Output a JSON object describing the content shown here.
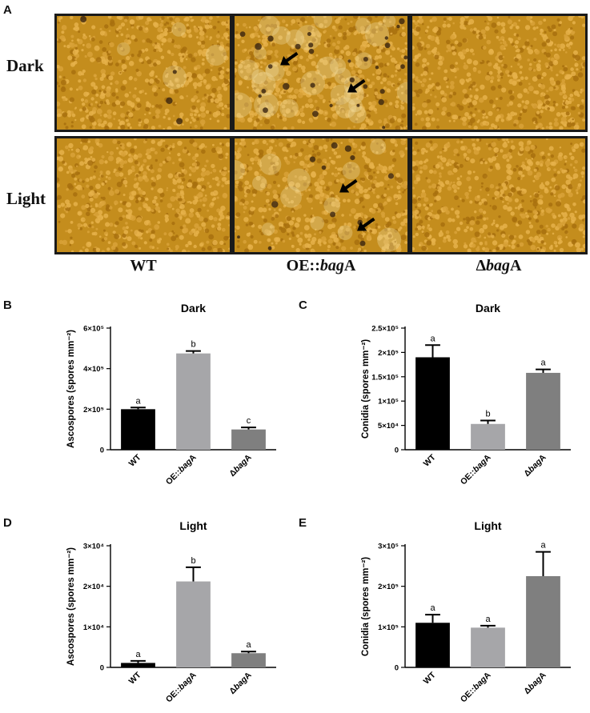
{
  "panel_letters": {
    "a": "A",
    "b": "B",
    "c": "C",
    "d": "D",
    "e": "E"
  },
  "micrographs": {
    "row_labels": [
      "Dark",
      "Light"
    ],
    "col_labels": [
      "WT",
      "OE::bagA",
      "ΔbagA"
    ],
    "col_label_parts": [
      {
        "pre": "WT",
        "ital": "",
        "post": ""
      },
      {
        "pre": "OE::",
        "ital": "bag",
        "post": "A"
      },
      {
        "pre": "Δ",
        "ital": "bag",
        "post": "A"
      }
    ],
    "arrows_shown_in": [
      "Dark/OE::bagA",
      "Light/OE::bagA"
    ],
    "background_color": "#c8921f"
  },
  "chart_data": [
    {
      "panel": "B",
      "type": "bar",
      "title": "Dark",
      "ylabel": "Ascospores (spores mm⁻²)",
      "categories": [
        "WT",
        "OE::bagA",
        "ΔbagA"
      ],
      "values": [
        200000,
        475000,
        100000
      ],
      "errors": [
        8000,
        12000,
        10000
      ],
      "significance": [
        "a",
        "b",
        "c"
      ],
      "ylim": [
        0,
        600000
      ],
      "yticks": [
        0,
        200000,
        400000,
        600000
      ],
      "ytick_labels": [
        "0",
        "2×10⁵",
        "4×10⁵",
        "6×10⁵"
      ],
      "bar_colors": [
        "#000000",
        "#a6a6a9",
        "#7f7f7f"
      ]
    },
    {
      "panel": "C",
      "type": "bar",
      "title": "Dark",
      "ylabel": "Conidia (spores mm⁻²)",
      "categories": [
        "WT",
        "OE::bagA",
        "ΔbagA"
      ],
      "values": [
        190000,
        53000,
        158000
      ],
      "errors": [
        25000,
        7000,
        7000
      ],
      "significance": [
        "a",
        "b",
        "a"
      ],
      "ylim": [
        0,
        250000
      ],
      "yticks": [
        0,
        50000,
        100000,
        150000,
        200000,
        250000
      ],
      "ytick_labels": [
        "0",
        "5×10⁴",
        "1×10⁵",
        "1.5×10⁵",
        "2×10⁵",
        "2.5×10⁵"
      ],
      "bar_colors": [
        "#000000",
        "#a6a6a9",
        "#7f7f7f"
      ]
    },
    {
      "panel": "D",
      "type": "bar",
      "title": "Light",
      "ylabel": "Ascospores (spores mm⁻²)",
      "categories": [
        "WT",
        "OE::bagA",
        "ΔbagA"
      ],
      "values": [
        1100,
        21200,
        3500
      ],
      "errors": [
        500,
        3500,
        400
      ],
      "significance": [
        "a",
        "b",
        "a"
      ],
      "ylim": [
        0,
        30000
      ],
      "yticks": [
        0,
        10000,
        20000,
        30000
      ],
      "ytick_labels": [
        "0",
        "1×10⁴",
        "2×10⁴",
        "3×10⁴"
      ],
      "bar_colors": [
        "#000000",
        "#a6a6a9",
        "#7f7f7f"
      ]
    },
    {
      "panel": "E",
      "type": "bar",
      "title": "Light",
      "ylabel": "Conidia (spores mm⁻²)",
      "categories": [
        "WT",
        "OE::bagA",
        "ΔbagA"
      ],
      "values": [
        110000,
        98000,
        225000
      ],
      "errors": [
        20000,
        5000,
        60000
      ],
      "significance": [
        "a",
        "a",
        "a"
      ],
      "ylim": [
        0,
        300000
      ],
      "yticks": [
        0,
        100000,
        200000,
        300000
      ],
      "ytick_labels": [
        "0",
        "1×10⁵",
        "2×10⁵",
        "3×10⁵"
      ],
      "bar_colors": [
        "#000000",
        "#a6a6a9",
        "#7f7f7f"
      ]
    }
  ]
}
